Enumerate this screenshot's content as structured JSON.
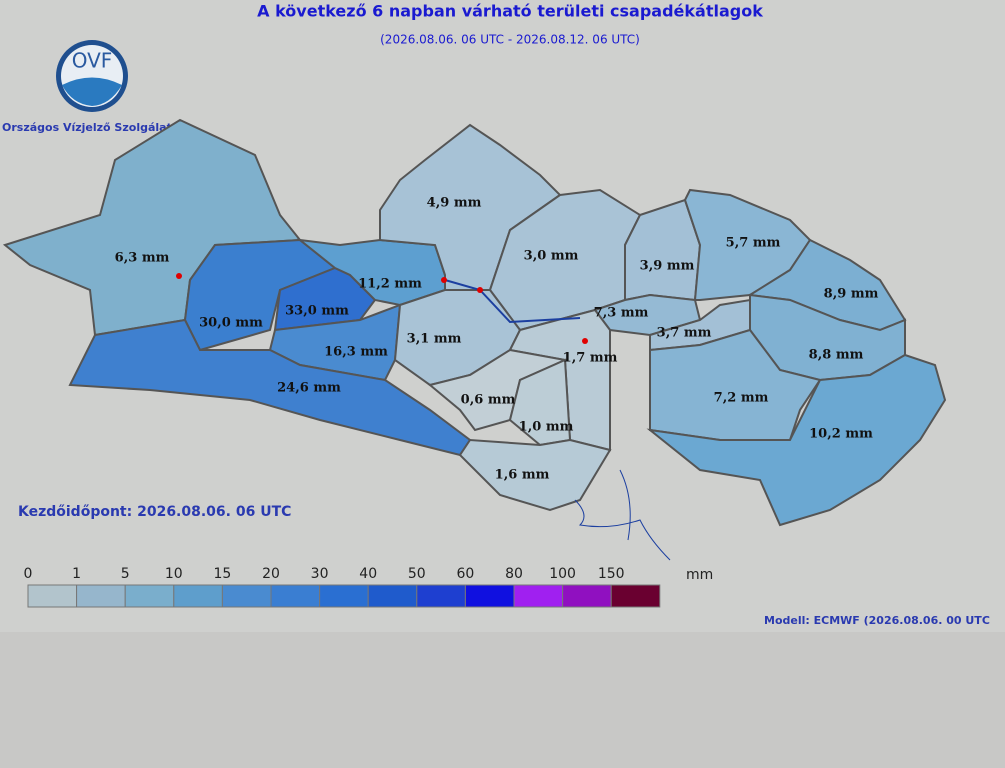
{
  "header": {
    "title": "A következő 6 napban várható területi csapadékátlagok",
    "subtitle": "(2026.08.06. 06 UTC - 2026.08.12. 06 UTC)"
  },
  "logo": {
    "text": "OVF",
    "organization": "Országos Vízjelző Szolgálat"
  },
  "regions": [
    {
      "label": "6,3 mm",
      "color": "#7fb0cc"
    },
    {
      "label": "30,0 mm",
      "color": "#3b7fcf"
    },
    {
      "label": "33,0 mm",
      "color": "#2f6fcf"
    },
    {
      "label": "11,2 mm",
      "color": "#5d9fd0"
    },
    {
      "label": "16,3 mm",
      "color": "#4a8bd0"
    },
    {
      "label": "24,6 mm",
      "color": "#3f80cf"
    },
    {
      "label": "4,9 mm",
      "color": "#a7c2d6"
    },
    {
      "label": "3,0 mm",
      "color": "#a9c3d6"
    },
    {
      "label": "3,9 mm",
      "color": "#a3c0d6"
    },
    {
      "label": "5,7 mm",
      "color": "#8ab6d4"
    },
    {
      "label": "8,9 mm",
      "color": "#7cafd2"
    },
    {
      "label": "7,3 mm",
      "color": "#95bad4"
    },
    {
      "label": "3,7 mm",
      "color": "#a3c0d6"
    },
    {
      "label": "8,8 mm",
      "color": "#80b1d2"
    },
    {
      "label": "3,1 mm",
      "color": "#a9c3d6"
    },
    {
      "label": "1,7 mm",
      "color": "#b9cbd6"
    },
    {
      "label": "0,6 mm",
      "color": "#c2cfd6"
    },
    {
      "label": "1,0 mm",
      "color": "#bccdd6"
    },
    {
      "label": "7,2 mm",
      "color": "#86b4d3"
    },
    {
      "label": "10,2 mm",
      "color": "#6ba8d2"
    },
    {
      "label": "1,6 mm",
      "color": "#b6cad6"
    }
  ],
  "start_time": "Kezdőidőpont: 2026.08.06. 06 UTC",
  "legend": {
    "ticks": [
      0,
      1,
      5,
      10,
      15,
      20,
      30,
      40,
      50,
      60,
      80,
      100,
      150
    ],
    "unit": "mm",
    "colors": [
      "#b2c4cc",
      "#96b6cc",
      "#7aaecc",
      "#5e9ecc",
      "#4a8bd0",
      "#3a7ed2",
      "#2a6fd2",
      "#1f5bcc",
      "#1e3fd0",
      "#1010e0",
      "#a020f0",
      "#9010c0",
      "#6a0030"
    ]
  },
  "model": "Modell:  ECMWF (2026.08.06. 00 UTC"
}
